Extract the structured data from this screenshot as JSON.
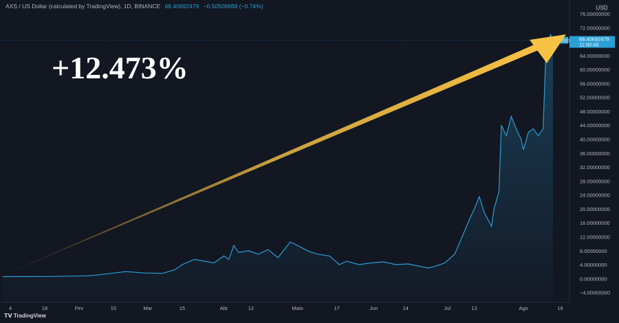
{
  "header": {
    "symbol": "AXS / US Dollar (calculated by TradingView), 1D, BINANCE",
    "price": "68.40692479",
    "change": "−0.50506668 (−0.74%)"
  },
  "annotation": "+12.473%",
  "branding": "TradingView",
  "colors": {
    "line": "#2a9fd6",
    "arrow": "#f7c244",
    "bg": "#131722"
  },
  "chart_data": {
    "type": "line",
    "title": "AXS / US Dollar (calculated by TradingView), 1D, BINANCE",
    "ylabel": "USD",
    "ylim": [
      -4,
      76
    ],
    "yticks": [
      "76.00000000",
      "72.00000000",
      "64.00000000",
      "60.00000000",
      "56.00000000",
      "52.00000000",
      "48.00000000",
      "44.00000000",
      "40.00000000",
      "36.00000000",
      "32.00000000",
      "28.00000000",
      "24.00000000",
      "20.00000000",
      "16.00000000",
      "12.00000000",
      "8.00000000",
      "4.00000000",
      "0.00000000",
      "−4.00000000"
    ],
    "xticks": [
      {
        "day": 3,
        "label": "4"
      },
      {
        "day": 17,
        "label": "18"
      },
      {
        "day": 31,
        "label": "Fev"
      },
      {
        "day": 45,
        "label": "15"
      },
      {
        "day": 59,
        "label": "Mar"
      },
      {
        "day": 73,
        "label": "15"
      },
      {
        "day": 90,
        "label": "Abr"
      },
      {
        "day": 101,
        "label": "12"
      },
      {
        "day": 120,
        "label": "Maio"
      },
      {
        "day": 136,
        "label": "17"
      },
      {
        "day": 151,
        "label": "Jun"
      },
      {
        "day": 164,
        "label": "14"
      },
      {
        "day": 181,
        "label": "Jul"
      },
      {
        "day": 192,
        "label": "12"
      },
      {
        "day": 212,
        "label": "Ago"
      },
      {
        "day": 227,
        "label": "16"
      }
    ],
    "last": {
      "label": "AXSUSD",
      "value": "68.40692479",
      "countdown": "11:00:45",
      "y": 68.4
    },
    "points": [
      [
        0,
        0.55
      ],
      [
        20,
        0.6
      ],
      [
        35,
        0.8
      ],
      [
        42,
        1.3
      ],
      [
        50,
        2
      ],
      [
        58,
        1.6
      ],
      [
        65,
        1.5
      ],
      [
        70,
        2.5
      ],
      [
        73,
        4
      ],
      [
        78,
        5.5
      ],
      [
        82,
        5
      ],
      [
        86,
        4.5
      ],
      [
        90,
        6.5
      ],
      [
        92,
        5.5
      ],
      [
        94,
        9.5
      ],
      [
        96,
        7.5
      ],
      [
        100,
        8
      ],
      [
        104,
        7
      ],
      [
        108,
        8.3
      ],
      [
        112,
        6
      ],
      [
        117,
        10.5
      ],
      [
        120,
        9.5
      ],
      [
        124,
        8
      ],
      [
        128,
        7
      ],
      [
        133,
        6.5
      ],
      [
        137,
        4
      ],
      [
        140,
        5
      ],
      [
        145,
        4
      ],
      [
        150,
        4.5
      ],
      [
        155,
        4.8
      ],
      [
        160,
        4
      ],
      [
        165,
        4.2
      ],
      [
        170,
        3.5
      ],
      [
        173,
        3
      ],
      [
        176,
        3.5
      ],
      [
        180,
        4.5
      ],
      [
        184,
        7
      ],
      [
        187,
        12
      ],
      [
        190,
        17
      ],
      [
        192,
        20
      ],
      [
        194,
        23.5
      ],
      [
        196,
        19
      ],
      [
        199,
        15
      ],
      [
        200,
        20
      ],
      [
        202,
        25
      ],
      [
        203,
        44
      ],
      [
        205,
        41
      ],
      [
        207,
        46.5
      ],
      [
        209,
        43
      ],
      [
        211,
        40
      ],
      [
        212,
        37
      ],
      [
        214,
        42
      ],
      [
        216,
        43
      ],
      [
        218,
        41
      ],
      [
        220,
        43
      ],
      [
        221,
        63
      ],
      [
        222,
        66
      ],
      [
        223,
        70
      ],
      [
        224,
        68.4
      ]
    ]
  }
}
